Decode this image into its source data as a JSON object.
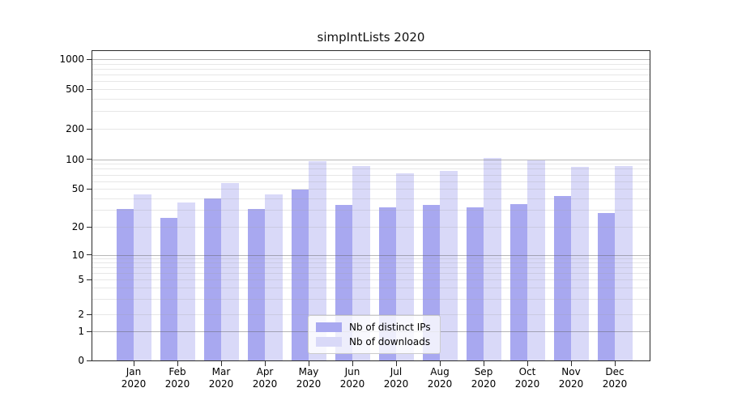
{
  "chart_data": {
    "type": "bar",
    "title": "simpIntLists 2020",
    "x_tick_labels": [
      [
        "Jan",
        "2020"
      ],
      [
        "Feb",
        "2020"
      ],
      [
        "Mar",
        "2020"
      ],
      [
        "Apr",
        "2020"
      ],
      [
        "May",
        "2020"
      ],
      [
        "Jun",
        "2020"
      ],
      [
        "Jul",
        "2020"
      ],
      [
        "Aug",
        "2020"
      ],
      [
        "Sep",
        "2020"
      ],
      [
        "Oct",
        "2020"
      ],
      [
        "Nov",
        "2020"
      ],
      [
        "Dec",
        "2020"
      ]
    ],
    "series": [
      {
        "name": "Nb of distinct IPs",
        "color": "#a8a8f0",
        "values": [
          31,
          25,
          40,
          31,
          49,
          34,
          32,
          34,
          32,
          35,
          42,
          28
        ]
      },
      {
        "name": "Nb of downloads",
        "color": "#d9d9f8",
        "values": [
          44,
          36,
          57,
          44,
          95,
          86,
          72,
          77,
          103,
          97,
          84,
          85
        ]
      }
    ],
    "y_ticks": [
      0,
      1,
      2,
      5,
      10,
      20,
      50,
      100,
      200,
      500,
      1000
    ],
    "y_scale": "symlog",
    "ylim": [
      0,
      1200
    ],
    "grid": "horizontal, major decade lines darker, log minor lines lighter",
    "legend_position": "inside bottom-center",
    "colors": {
      "major_grid": "#b9b9b9",
      "minor_grid": "#e9e9e9",
      "axis_spine": "#2b2b2b",
      "legend_border": "#cccccc"
    }
  }
}
